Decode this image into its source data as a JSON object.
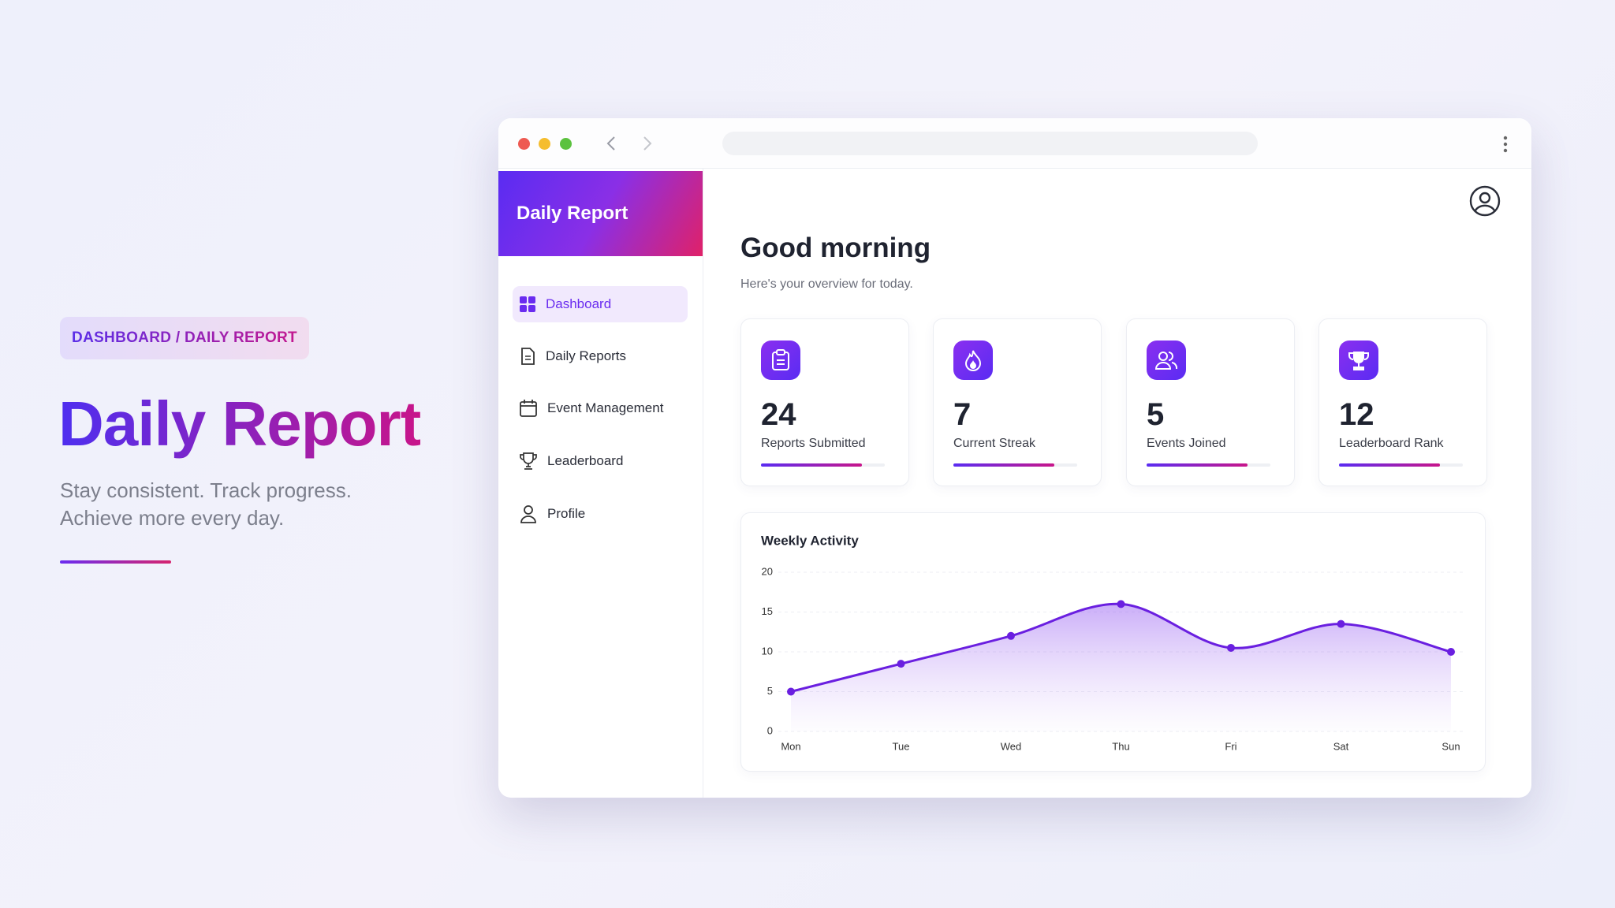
{
  "breadcrumb": "DASHBOARD / DAILY REPORT",
  "hero": {
    "title": "Daily Report",
    "subtitle": [
      "Stay consistent. Track progress.",
      "Achieve more every day."
    ]
  },
  "sidebar": {
    "brand": "Daily Report",
    "nav": [
      "Dashboard",
      "Daily Reports",
      "Event Management",
      "Leaderboard",
      "Profile"
    ]
  },
  "main": {
    "greeting": "Good morning",
    "subtitle": "Here's your overview for today.",
    "stats": [
      {
        "value": 24,
        "label": "Reports Submitted"
      },
      {
        "value": 7,
        "label": "Current Streak"
      },
      {
        "value": 5,
        "label": "Events Joined"
      },
      {
        "value": 12,
        "label": "Leaderboard Rank"
      }
    ]
  },
  "chart_data": {
    "type": "line",
    "title": "Weekly Activity",
    "categories": [
      "Mon",
      "Tue",
      "Wed",
      "Thu",
      "Fri",
      "Sat",
      "Sun"
    ],
    "values": [
      5,
      8.5,
      12,
      16,
      10.5,
      13.5,
      10
    ],
    "color": "#6a1fe0",
    "ylim": [
      0,
      20
    ],
    "yticks": [
      0,
      5,
      10,
      15,
      20
    ],
    "grid": true
  }
}
